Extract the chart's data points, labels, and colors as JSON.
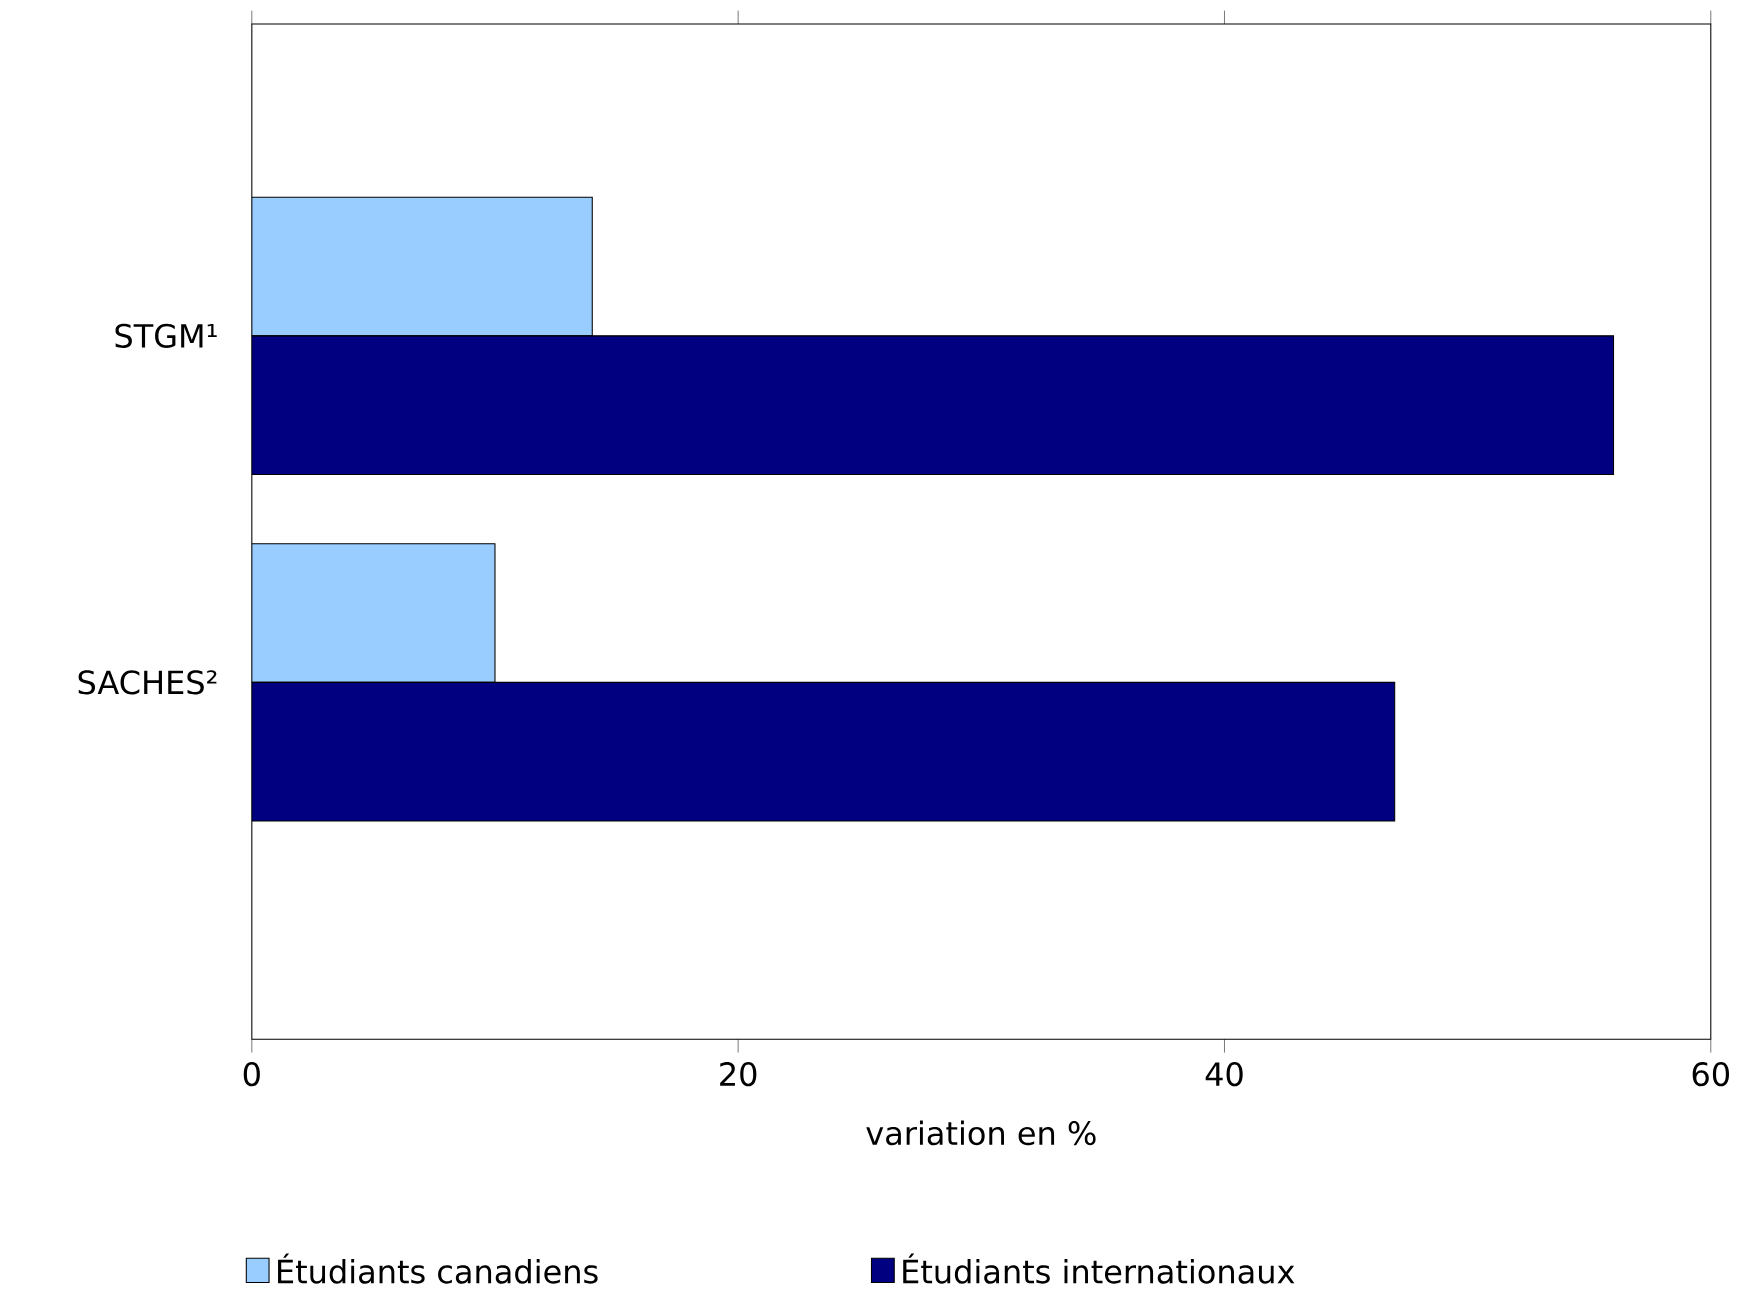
{
  "chart_data": {
    "type": "bar",
    "orientation": "horizontal",
    "xlabel": "variation en %",
    "categories": [
      "STGM¹",
      "SACHES²"
    ],
    "series": [
      {
        "name": "Étudiants canadiens",
        "color": "#99ccff",
        "values": [
          14,
          10
        ]
      },
      {
        "name": "Étudiants internationaux",
        "color": "#000080",
        "values": [
          56,
          47
        ]
      }
    ],
    "xlim": [
      0,
      60
    ],
    "xticks": [
      0,
      20,
      40,
      60
    ],
    "legend": "bottom"
  }
}
